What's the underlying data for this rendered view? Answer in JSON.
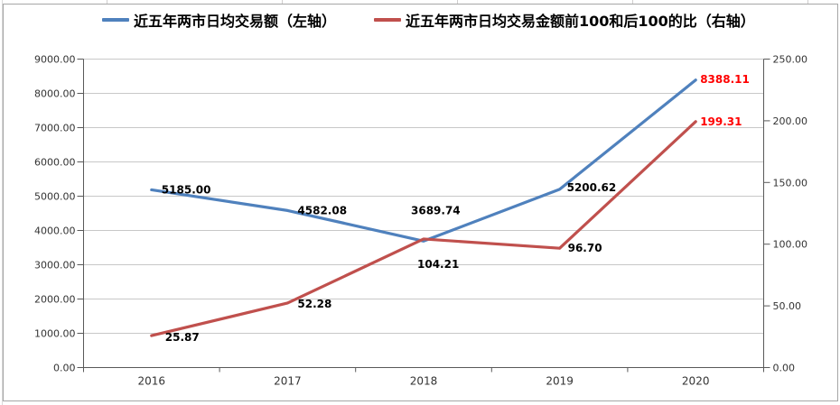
{
  "legend": {
    "items": [
      {
        "label": "近五年两市日均交易额（左轴）",
        "color": "#4F81BD"
      },
      {
        "label": "近五年两市日均交易金额前100和后100的比（右轴）",
        "color": "#C0504D"
      }
    ]
  },
  "chart_data": {
    "type": "line",
    "title": "",
    "categories": [
      "2016",
      "2017",
      "2018",
      "2019",
      "2020"
    ],
    "series": [
      {
        "name": "近五年两市日均交易额（左轴）",
        "axis": "left",
        "color": "#4F81BD",
        "values": [
          5185.0,
          4582.08,
          3689.74,
          5200.62,
          8388.11
        ],
        "point_labels": [
          "5185.00",
          "4582.08",
          "3689.74",
          "5200.62",
          "8388.11"
        ],
        "point_label_colors": [
          "#000000",
          "#000000",
          "#000000",
          "#000000",
          "#FF0000"
        ]
      },
      {
        "name": "近五年两市日均交易金额前100和后100的比（右轴）",
        "axis": "right",
        "color": "#C0504D",
        "values": [
          25.87,
          52.28,
          104.21,
          96.7,
          199.31
        ],
        "point_labels": [
          "25.87",
          "52.28",
          "104.21",
          "96.70",
          "199.31"
        ],
        "point_label_colors": [
          "#000000",
          "#000000",
          "#000000",
          "#000000",
          "#FF0000"
        ]
      }
    ],
    "left_axis": {
      "min": 0,
      "max": 9000,
      "step": 1000,
      "tick_labels": [
        "0.00",
        "1000.00",
        "2000.00",
        "3000.00",
        "4000.00",
        "5000.00",
        "6000.00",
        "7000.00",
        "8000.00",
        "9000.00"
      ]
    },
    "right_axis": {
      "min": 0,
      "max": 250,
      "step": 50,
      "tick_labels": [
        "0.00",
        "50.00",
        "100.00",
        "150.00",
        "200.00",
        "250.00"
      ]
    },
    "grid": true,
    "legend_position": "top",
    "style": {
      "grid_color": "#c8c8c8",
      "axis_color": "#595959",
      "tick_label_color": "#333333",
      "highlight_label_color": "#FF0000"
    }
  }
}
